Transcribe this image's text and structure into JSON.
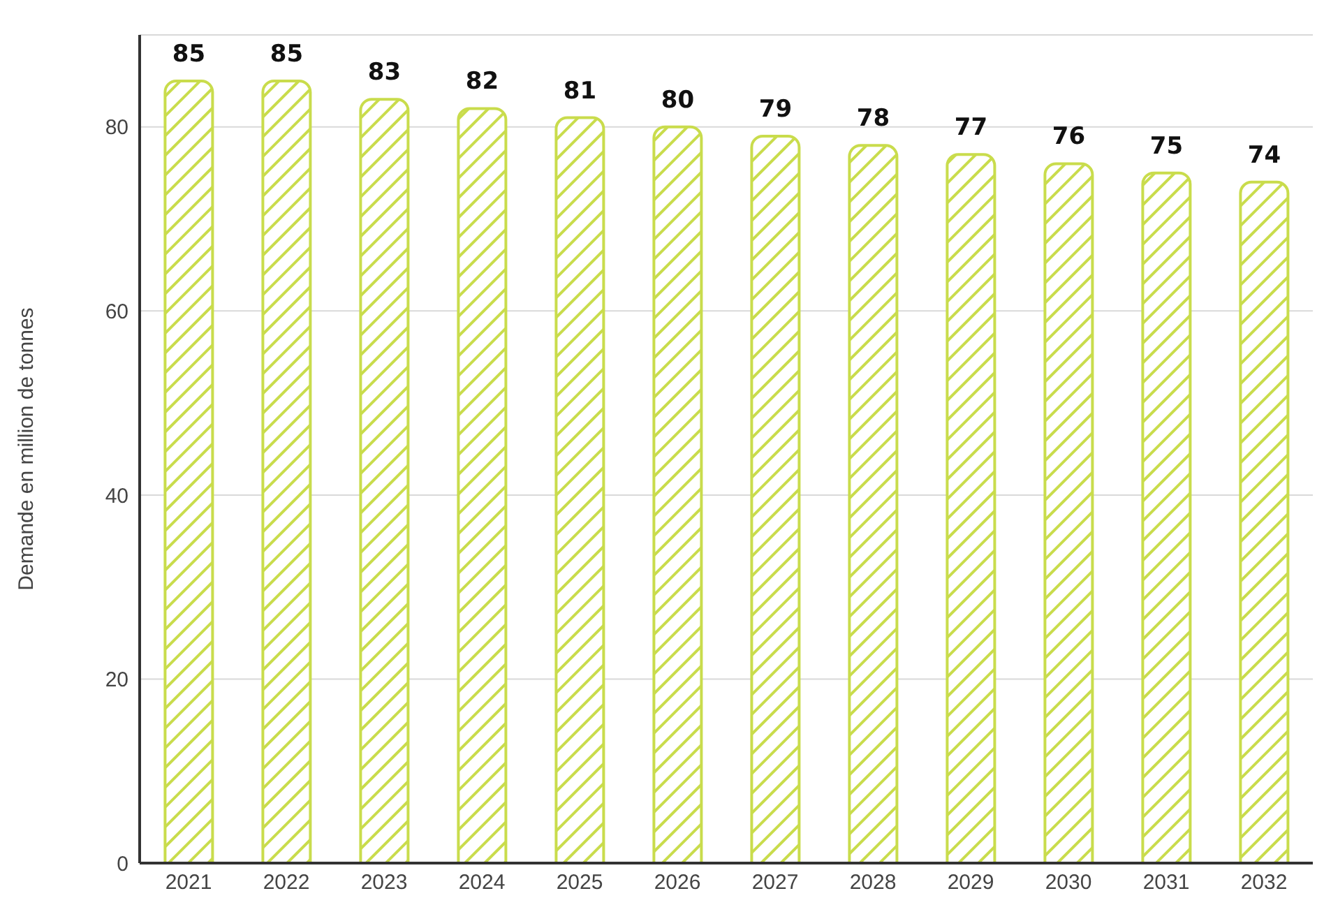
{
  "chart_data": {
    "type": "bar",
    "ylabel": "Demande en million de tonnes",
    "categories": [
      "2021",
      "2022",
      "2023",
      "2024",
      "2025",
      "2026",
      "2027",
      "2028",
      "2029",
      "2030",
      "2031",
      "2032"
    ],
    "values": [
      85,
      85,
      83,
      82,
      81,
      80,
      79,
      78,
      77,
      76,
      75,
      74
    ],
    "color": "#c9dc4c",
    "ylim": [
      0,
      90
    ],
    "yticks": [
      0,
      20,
      40,
      60,
      80
    ],
    "grid": "y",
    "data_labels": true
  }
}
